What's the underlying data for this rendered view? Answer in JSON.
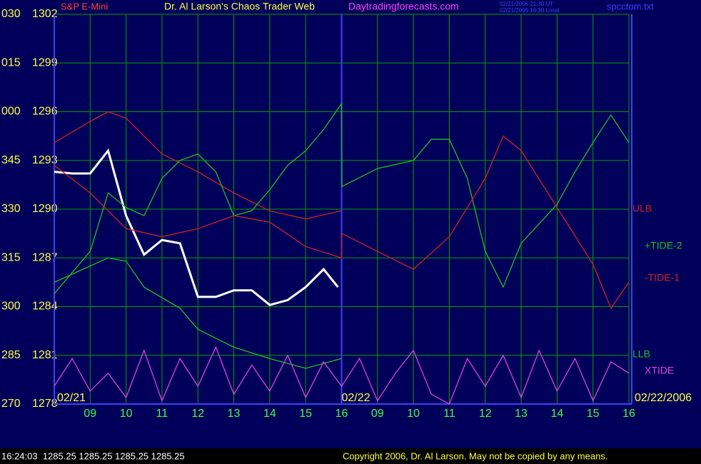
{
  "chart_data": {
    "type": "line",
    "title": "Dr. Al Larson's Chaos Trader Web",
    "site": "Daytradingforecasts.com",
    "timestamp_ut": "02/21/2006 21:30 UT",
    "timestamp_local": "02/21/2006 16:30 Local",
    "file": "spcctom.txt",
    "quote": "16:24:03  1285.25 1285.25 1285.25 1285.25",
    "copyright": "Copyright 2006, Dr. Al Larson. May not be copied by any means.",
    "xlim": [
      8,
      24
    ],
    "xticks": [
      {
        "value": 9,
        "label": "09"
      },
      10,
      11,
      12,
      13,
      14,
      15,
      16,
      {
        "value": 17,
        "label": "09"
      },
      {
        "value": 18,
        "label": "10"
      },
      {
        "value": 19,
        "label": "11"
      },
      {
        "value": 20,
        "label": "12"
      },
      {
        "value": 21,
        "label": "13"
      },
      {
        "value": 22,
        "label": "14"
      },
      {
        "value": 23,
        "label": "15"
      },
      {
        "value": 24,
        "label": "16"
      }
    ],
    "date_labels": [
      {
        "value": 8,
        "label": "02/21"
      },
      {
        "value": 16,
        "label": "02/22"
      },
      {
        "value": 24,
        "label": "02/22/2006"
      }
    ],
    "ylim": [
      1278,
      1302
    ],
    "yticks": [
      1278,
      1281,
      1284,
      1287,
      1290,
      1293,
      1296,
      1299,
      1302
    ],
    "angle_labels": [
      "270",
      "285",
      "300",
      "315",
      "330",
      "345",
      "000",
      "015",
      "030"
    ],
    "grid": true,
    "series": [
      {
        "name": "S&P E-Mini",
        "color": "#ffffff",
        "x": [
          8,
          8.5,
          9,
          9.5,
          10,
          10.5,
          11,
          11.5,
          12,
          12.5,
          13,
          13.5,
          14,
          14.5,
          15,
          15.5,
          15.9
        ],
        "values": [
          1292.3,
          1292.2,
          1292.2,
          1293.6,
          1289.6,
          1287.2,
          1288.1,
          1287.9,
          1284.6,
          1284.6,
          1285.0,
          1285.0,
          1284.1,
          1284.4,
          1285.2,
          1286.3,
          1285.2
        ]
      },
      {
        "name": "ULB",
        "color": "#d02020",
        "x": [
          8,
          9,
          9.5,
          10,
          10.5,
          11,
          12,
          13,
          14,
          15,
          16
        ],
        "values": [
          1294.1,
          1295.4,
          1296.0,
          1295.6,
          1294.5,
          1293.4,
          1292.3,
          1291.0,
          1289.9,
          1289.4,
          1289.9
        ]
      },
      {
        "name": "+TIDE-2",
        "color": "#20c020",
        "x": [
          8,
          9,
          9.5,
          10,
          10.5,
          11,
          11.5,
          12,
          12.5,
          13,
          13.5,
          14,
          14.5,
          15,
          15.5,
          16,
          16.01,
          17,
          18,
          18.5,
          19,
          19.5,
          20,
          20.5,
          21,
          22,
          22.5,
          23,
          23.5,
          24
        ],
        "values": [
          1284.8,
          1287.4,
          1291.0,
          1290.1,
          1289.6,
          1291.9,
          1293.0,
          1293.4,
          1292.3,
          1289.6,
          1289.9,
          1291.2,
          1292.7,
          1293.6,
          1294.9,
          1296.5,
          1291.4,
          1292.5,
          1293.0,
          1294.3,
          1294.3,
          1291.9,
          1287.4,
          1285.2,
          1287.9,
          1290.3,
          1292.3,
          1294.1,
          1295.8,
          1294.1
        ]
      },
      {
        "name": "-TIDE-1",
        "color": "#d02020",
        "x": [
          8,
          9,
          10,
          11,
          12,
          13,
          14,
          15,
          16,
          16.01,
          17,
          18,
          19,
          20,
          20.5,
          21,
          22,
          23,
          23.5,
          24
        ],
        "values": [
          1292.7,
          1291.0,
          1288.8,
          1288.3,
          1288.8,
          1289.6,
          1289.2,
          1287.7,
          1287.0,
          1288.5,
          1287.4,
          1286.3,
          1288.3,
          1291.9,
          1294.5,
          1293.6,
          1290.1,
          1286.6,
          1283.9,
          1285.5
        ]
      },
      {
        "name": "LLB",
        "color": "#20c020",
        "x": [
          8,
          9.5,
          10,
          10.5,
          11.5,
          12,
          13,
          14,
          15,
          16
        ],
        "values": [
          1285.5,
          1287.0,
          1286.8,
          1285.2,
          1283.9,
          1282.6,
          1281.5,
          1280.8,
          1280.2,
          1280.8
        ]
      },
      {
        "name": "XTIDE",
        "color": "#e040e0",
        "x": [
          8,
          8.5,
          9,
          9.5,
          10,
          10.5,
          11,
          11.5,
          12,
          12.5,
          13,
          13.5,
          14,
          14.5,
          15,
          15.5,
          16,
          16.5,
          17,
          17.5,
          18,
          18.5,
          19,
          19.5,
          20,
          20.5,
          21,
          21.5,
          22,
          22.5,
          23,
          23.5,
          24
        ],
        "values": [
          1279.1,
          1280.8,
          1278.8,
          1279.9,
          1278.4,
          1281.3,
          1278.2,
          1280.8,
          1279.1,
          1281.5,
          1278.6,
          1280.4,
          1278.8,
          1281.0,
          1278.4,
          1280.6,
          1279.1,
          1280.8,
          1278.2,
          1279.9,
          1281.3,
          1278.6,
          1278.0,
          1280.8,
          1279.1,
          1281.0,
          1278.4,
          1281.3,
          1278.8,
          1280.8,
          1278.2,
          1280.6,
          1279.9
        ]
      }
    ]
  }
}
